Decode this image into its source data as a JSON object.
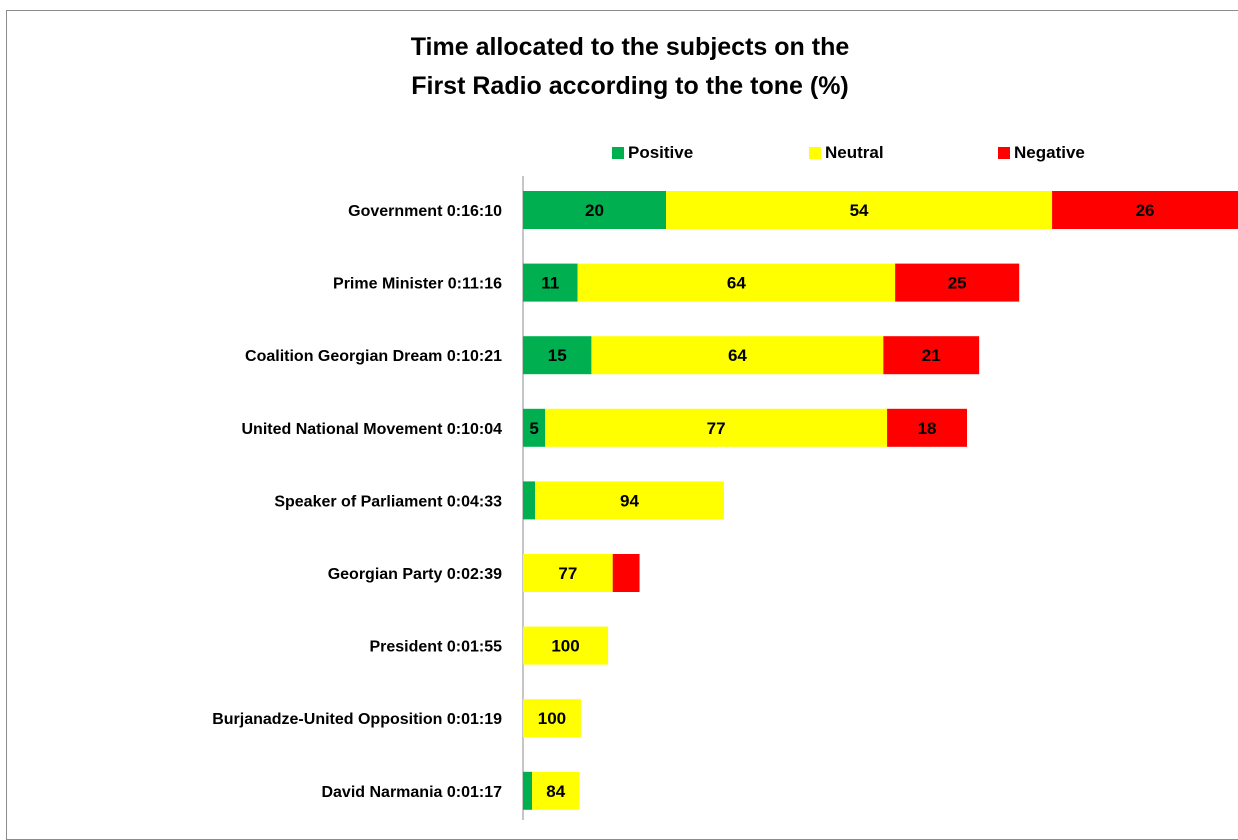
{
  "chart_data": {
    "type": "bar",
    "orientation": "horizontal",
    "stacked": true,
    "title": "Time allocated to the subjects on the First Radio according to the tone (%)",
    "title_lines": [
      "Time allocated to the subjects on the",
      "First Radio according to the tone (%)"
    ],
    "xlabel": "",
    "ylabel": "",
    "xlim": [
      0,
      100
    ],
    "legend_position": "top",
    "grid": false,
    "categories": [
      "Government 0:16:10",
      "Prime Minister 0:11:16",
      "Coalition Georgian Dream 0:10:21",
      "United National Movement 0:10:04",
      "Speaker of Parliament 0:04:33",
      "Georgian Party 0:02:39",
      "President 0:01:55",
      "Burjanadze-United Opposition 0:01:19",
      "David Narmania 0:01:17"
    ],
    "bar_scale": [
      1.0,
      0.694,
      0.638,
      0.621,
      0.281,
      0.163,
      0.119,
      0.081,
      0.079
    ],
    "series": [
      {
        "name": "Positive",
        "color": "#00b050",
        "values": [
          20,
          11,
          15,
          5,
          6,
          0,
          0,
          0,
          16
        ],
        "labels": [
          "20",
          "11",
          "15",
          "5",
          "",
          "",
          "",
          "",
          ""
        ]
      },
      {
        "name": "Neutral",
        "color": "#ffff00",
        "values": [
          54,
          64,
          64,
          77,
          94,
          77,
          100,
          100,
          84
        ],
        "labels": [
          "54",
          "64",
          "64",
          "77",
          "94",
          "77",
          "100",
          "100",
          "84"
        ]
      },
      {
        "name": "Negative",
        "color": "#ff0000",
        "values": [
          26,
          25,
          21,
          18,
          0,
          23,
          0,
          0,
          0
        ],
        "labels": [
          "26",
          "25",
          "21",
          "18",
          "",
          "",
          "",
          "",
          ""
        ]
      }
    ]
  }
}
